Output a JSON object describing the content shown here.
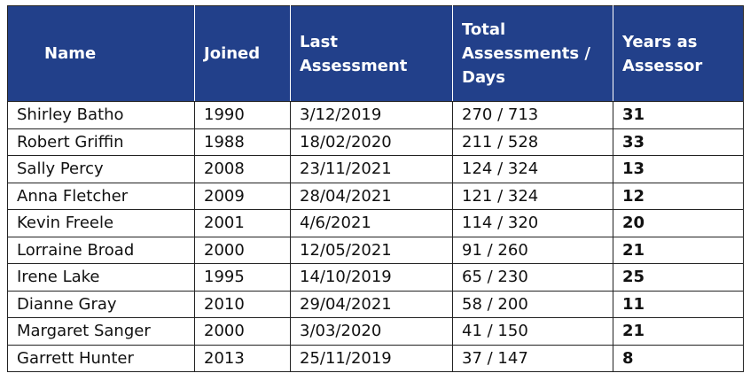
{
  "table": {
    "headers": {
      "name": [
        "Name"
      ],
      "joined": [
        "Joined"
      ],
      "last_assessment": [
        "Last",
        "Assessment"
      ],
      "total": [
        "Total",
        "Assessments /",
        "Days"
      ],
      "years": [
        "Years as",
        "Assessor"
      ]
    },
    "rows": [
      {
        "name": "Shirley Batho",
        "joined": "1990",
        "last_assessment": "3/12/2019",
        "total": "270 / 713",
        "years": "31"
      },
      {
        "name": "Robert Griffin",
        "joined": "1988",
        "last_assessment": "18/02/2020",
        "total": "211 / 528",
        "years": "33"
      },
      {
        "name": "Sally Percy",
        "joined": "2008",
        "last_assessment": "23/11/2021",
        "total": "124 / 324",
        "years": "13"
      },
      {
        "name": "Anna Fletcher",
        "joined": "2009",
        "last_assessment": "28/04/2021",
        "total": "121 / 324",
        "years": "12"
      },
      {
        "name": "Kevin Freele",
        "joined": "2001",
        "last_assessment": "4/6/2021",
        "total": "114 / 320",
        "years": "20"
      },
      {
        "name": "Lorraine Broad",
        "joined": "2000",
        "last_assessment": "12/05/2021",
        "total": "91 / 260",
        "years": "21"
      },
      {
        "name": "Irene Lake",
        "joined": "1995",
        "last_assessment": "14/10/2019",
        "total": "65 / 230",
        "years": "25"
      },
      {
        "name": "Dianne Gray",
        "joined": "2010",
        "last_assessment": "29/04/2021",
        "total": "58 / 200",
        "years": "11"
      },
      {
        "name": "Margaret Sanger",
        "joined": "2000",
        "last_assessment": "3/03/2020",
        "total": "41 / 150",
        "years": "21"
      },
      {
        "name": "Garrett Hunter",
        "joined": "2013",
        "last_assessment": "25/11/2019",
        "total": "37 / 147",
        "years": "8"
      }
    ]
  },
  "colors": {
    "header_background": "#22408a",
    "header_text": "#ffffff",
    "border": "#222222"
  }
}
